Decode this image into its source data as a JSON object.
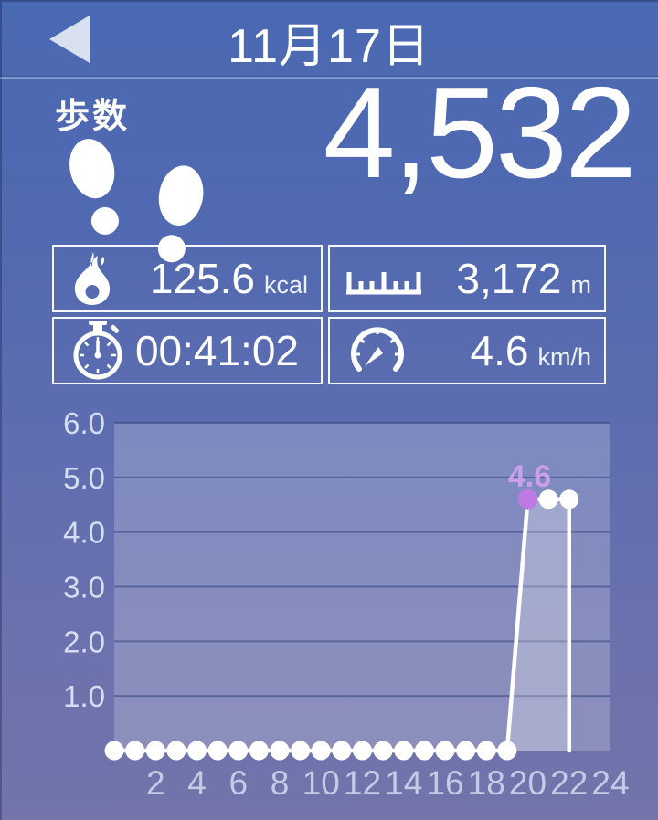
{
  "header": {
    "date": "11月17日",
    "back_icon": "back-arrow-icon"
  },
  "steps": {
    "label": "歩数",
    "value": "4,532",
    "icon": "footprints-icon"
  },
  "stats": {
    "calories": {
      "value": "125.6",
      "unit": "kcal",
      "icon": "flame-icon"
    },
    "distance": {
      "value": "3,172",
      "unit": "m",
      "icon": "ruler-icon"
    },
    "duration": {
      "value": "00:41:02",
      "unit": "",
      "icon": "stopwatch-icon"
    },
    "speed": {
      "value": "4.6",
      "unit": "km/h",
      "icon": "speedometer-icon"
    }
  },
  "colors": {
    "background_top": "#4a69b3",
    "background_bottom": "#7274aa",
    "accent_purple": "#bd7ae3",
    "highlight_label_purple": "#cb9fea",
    "line_white": "#ffffff",
    "grid_blue": "#46568f"
  },
  "chart_data": {
    "type": "line",
    "title": "",
    "xlabel": "",
    "ylabel": "",
    "xlim": [
      0,
      24
    ],
    "ylim": [
      0,
      6
    ],
    "grid": true,
    "legend": "none",
    "yticks": [
      {
        "v": 6,
        "label": "6.0"
      },
      {
        "v": 5,
        "label": "5.0"
      },
      {
        "v": 4,
        "label": "4.0"
      },
      {
        "v": 3,
        "label": "3.0"
      },
      {
        "v": 2,
        "label": "2.0"
      },
      {
        "v": 1,
        "label": "1.0"
      }
    ],
    "xticks": [
      {
        "v": 2,
        "label": "2"
      },
      {
        "v": 4,
        "label": "4"
      },
      {
        "v": 6,
        "label": "6"
      },
      {
        "v": 8,
        "label": "8"
      },
      {
        "v": 10,
        "label": "10"
      },
      {
        "v": 12,
        "label": "12"
      },
      {
        "v": 14,
        "label": "14"
      },
      {
        "v": 16,
        "label": "16"
      },
      {
        "v": 18,
        "label": "18"
      },
      {
        "v": 20,
        "label": "20"
      },
      {
        "v": 22,
        "label": "22"
      },
      {
        "v": 24,
        "label": "24"
      }
    ],
    "series": [
      {
        "name": "speed_kmh_by_hour",
        "points": [
          [
            0,
            0
          ],
          [
            1,
            0
          ],
          [
            2,
            0
          ],
          [
            3,
            0
          ],
          [
            4,
            0
          ],
          [
            5,
            0
          ],
          [
            6,
            0
          ],
          [
            7,
            0
          ],
          [
            8,
            0
          ],
          [
            9,
            0
          ],
          [
            10,
            0
          ],
          [
            11,
            0
          ],
          [
            12,
            0
          ],
          [
            13,
            0
          ],
          [
            14,
            0
          ],
          [
            15,
            0
          ],
          [
            16,
            0
          ],
          [
            17,
            0
          ],
          [
            18,
            0
          ],
          [
            19,
            0
          ],
          [
            20,
            4.6
          ],
          [
            21,
            4.6
          ],
          [
            22,
            4.6
          ]
        ],
        "line_vertices": [
          [
            0,
            0
          ],
          [
            19,
            0
          ],
          [
            20,
            4.6
          ],
          [
            22,
            4.6
          ],
          [
            22,
            0
          ]
        ],
        "area_vertices": [
          [
            19,
            0
          ],
          [
            20,
            4.6
          ],
          [
            22,
            4.6
          ],
          [
            22,
            0
          ]
        ]
      }
    ],
    "highlight": {
      "hour": 20,
      "value": 4.6,
      "label": "4.6"
    }
  }
}
